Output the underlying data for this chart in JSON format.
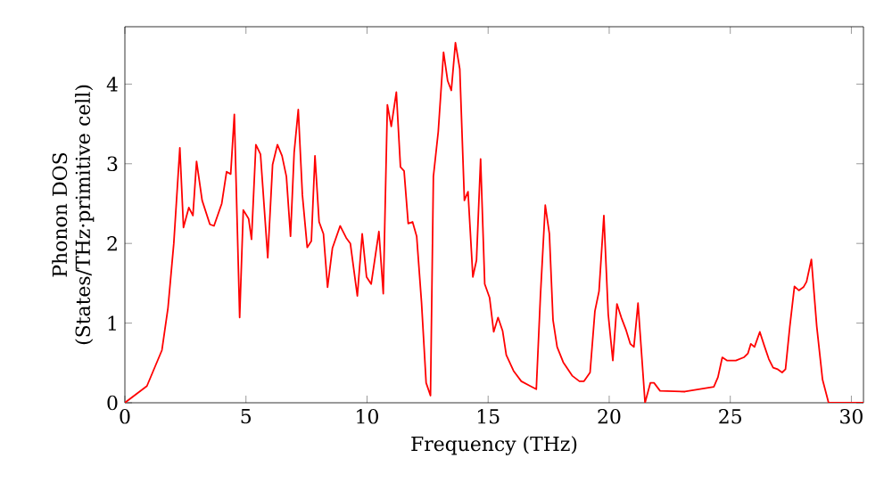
{
  "chart_data": {
    "type": "line",
    "xlabel": "Frequency (THz)",
    "ylabel": "Phonon DOS (States/THz·primitive cell)",
    "xlim": [
      0,
      30.5
    ],
    "ylim": [
      0,
      4.72
    ],
    "xticks": [
      0,
      5,
      10,
      15,
      20,
      25,
      30
    ],
    "yticks": [
      0,
      1,
      2,
      3,
      4
    ],
    "grid": false,
    "marker": "none",
    "line_style": "solid",
    "series": [
      {
        "color": "#ff0000",
        "x": [
          0,
          0.91,
          1.53,
          1.78,
          2.02,
          2.27,
          2.42,
          2.64,
          2.81,
          2.96,
          3.19,
          3.51,
          3.68,
          4.0,
          4.2,
          4.37,
          4.52,
          4.74,
          4.89,
          5.11,
          5.23,
          5.41,
          5.6,
          5.9,
          6.1,
          6.3,
          6.49,
          6.67,
          6.84,
          6.99,
          7.16,
          7.33,
          7.53,
          7.7,
          7.85,
          8.02,
          8.2,
          8.37,
          8.57,
          8.89,
          9.14,
          9.31,
          9.6,
          9.8,
          9.98,
          10.17,
          10.49,
          10.67,
          10.84,
          11.0,
          11.21,
          11.38,
          11.53,
          11.7,
          11.88,
          12.05,
          12.25,
          12.44,
          12.62,
          12.74,
          12.94,
          13.16,
          13.33,
          13.48,
          13.65,
          13.83,
          14.02,
          14.17,
          14.37,
          14.52,
          14.69,
          14.86,
          15.06,
          15.23,
          15.41,
          15.6,
          15.75,
          16.05,
          16.37,
          16.74,
          16.99,
          17.16,
          17.36,
          17.53,
          17.68,
          17.85,
          18.1,
          18.47,
          18.77,
          18.96,
          19.21,
          19.41,
          19.58,
          19.78,
          19.96,
          20.15,
          20.32,
          20.5,
          20.7,
          20.87,
          21.02,
          21.19,
          21.48,
          21.7,
          21.85,
          22.1,
          23.13,
          24.32,
          24.49,
          24.67,
          24.86,
          25.23,
          25.56,
          25.73,
          25.85,
          26.0,
          26.22,
          26.4,
          26.59,
          26.77,
          26.96,
          27.14,
          27.28,
          27.46,
          27.65,
          27.83,
          28.02,
          28.15,
          28.35,
          28.57,
          28.81,
          29.06,
          30.5
        ],
        "values": [
          0,
          0.21,
          0.66,
          1.19,
          2.0,
          3.2,
          2.2,
          2.45,
          2.35,
          3.03,
          2.54,
          2.24,
          2.22,
          2.5,
          2.9,
          2.87,
          3.62,
          1.07,
          2.42,
          2.31,
          2.05,
          3.24,
          3.12,
          1.82,
          2.99,
          3.24,
          3.1,
          2.84,
          2.09,
          3.14,
          3.68,
          2.61,
          1.95,
          2.03,
          3.1,
          2.27,
          2.12,
          1.45,
          1.94,
          2.22,
          2.07,
          2.0,
          1.34,
          2.12,
          1.58,
          1.49,
          2.15,
          1.37,
          3.74,
          3.47,
          3.9,
          2.96,
          2.91,
          2.25,
          2.27,
          2.09,
          1.26,
          0.25,
          0.09,
          2.84,
          3.4,
          4.4,
          4.04,
          3.92,
          4.52,
          4.19,
          2.54,
          2.65,
          1.58,
          1.79,
          3.06,
          1.49,
          1.32,
          0.89,
          1.07,
          0.9,
          0.6,
          0.4,
          0.27,
          0.21,
          0.17,
          1.34,
          2.48,
          2.12,
          1.04,
          0.7,
          0.51,
          0.34,
          0.27,
          0.27,
          0.38,
          1.15,
          1.4,
          2.35,
          1.11,
          0.53,
          1.24,
          1.07,
          0.91,
          0.74,
          0.7,
          1.25,
          0,
          0.25,
          0.25,
          0.15,
          0.14,
          0.2,
          0.32,
          0.57,
          0.53,
          0.53,
          0.57,
          0.62,
          0.74,
          0.7,
          0.89,
          0.72,
          0.55,
          0.44,
          0.42,
          0.38,
          0.42,
          0.96,
          1.46,
          1.41,
          1.45,
          1.52,
          1.8,
          0.96,
          0.29,
          0,
          0
        ]
      }
    ]
  }
}
